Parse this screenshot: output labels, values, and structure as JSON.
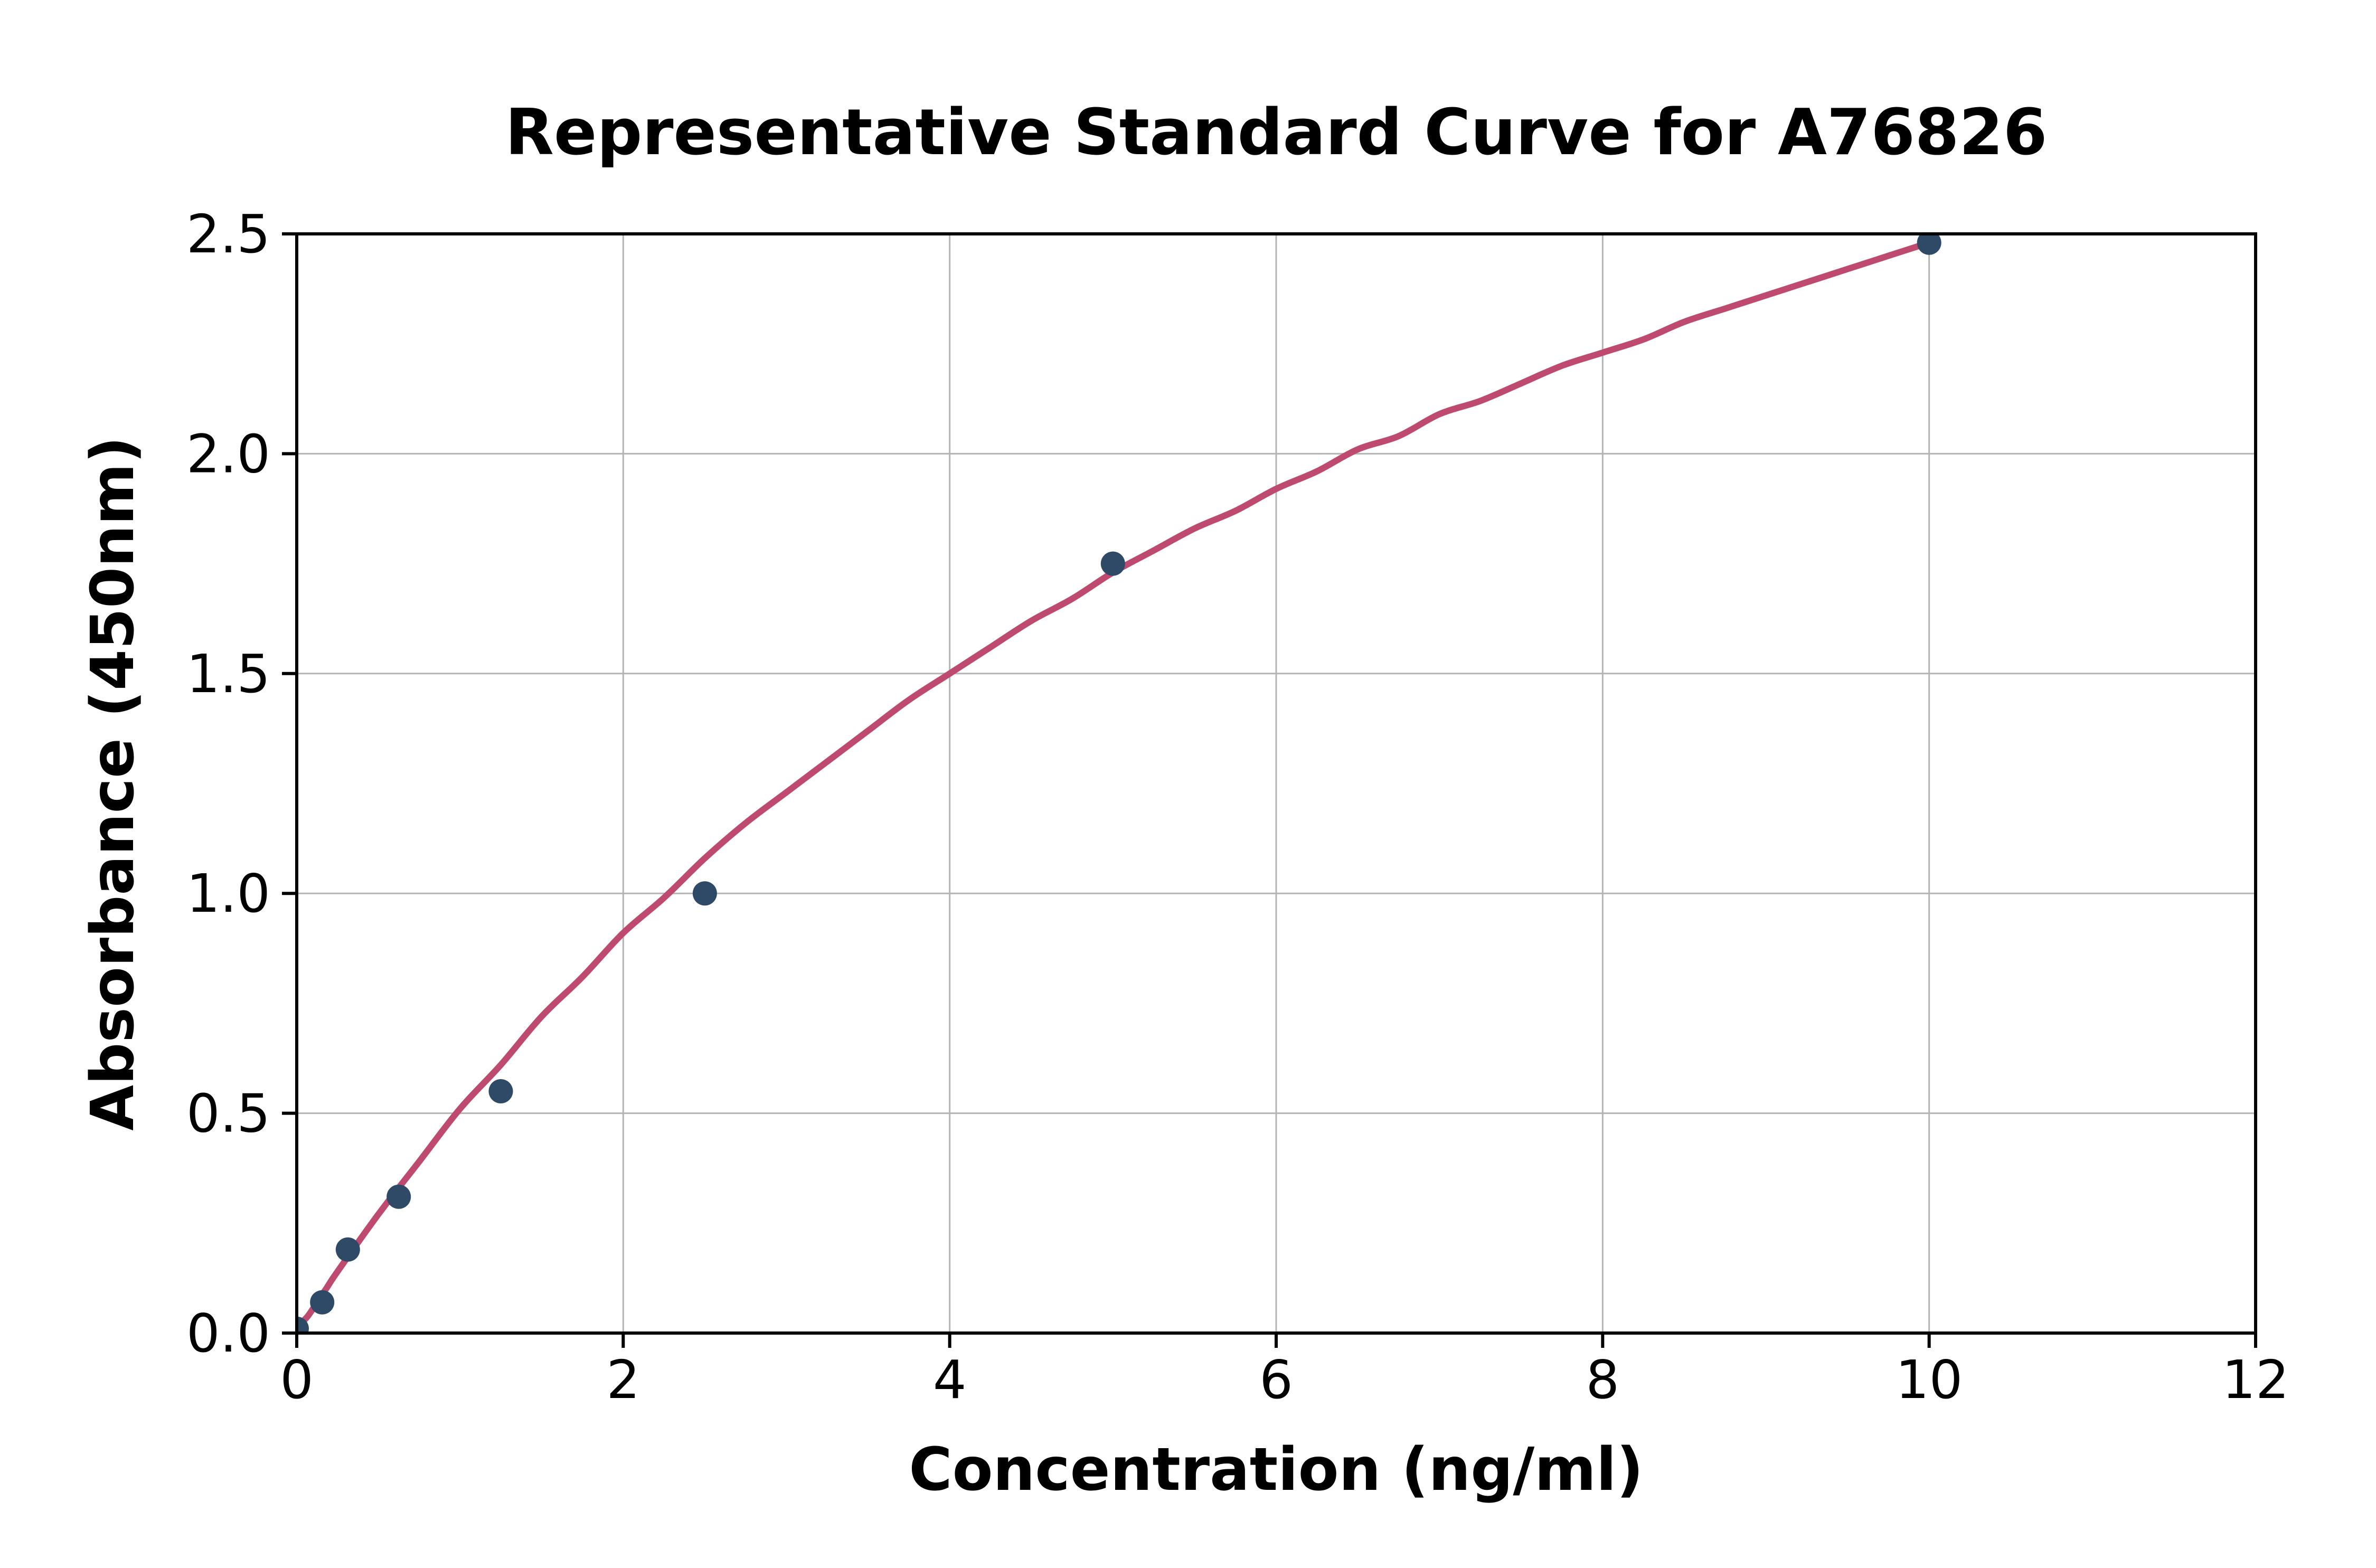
{
  "page": {
    "background": "#ffffff"
  },
  "chart_data": {
    "type": "scatter",
    "title": "Representative Standard Curve for A76826",
    "xlabel": "Concentration (ng/ml)",
    "ylabel": "Absorbance (450nm)",
    "xlim": [
      0,
      12
    ],
    "ylim": [
      0,
      2.5
    ],
    "x_ticks": [
      0,
      2,
      4,
      6,
      8,
      10,
      12
    ],
    "x_tick_labels": [
      "0",
      "2",
      "4",
      "6",
      "8",
      "10",
      "12"
    ],
    "y_ticks": [
      0.0,
      0.5,
      1.0,
      1.5,
      2.0,
      2.5
    ],
    "y_tick_labels": [
      "0.0",
      "0.5",
      "1.0",
      "1.5",
      "2.0",
      "2.5"
    ],
    "grid": true,
    "legend_position": "none",
    "colors": {
      "curve": "#bf4a70",
      "marker": "#2e4a66",
      "grid": "#b4b4b4",
      "axis": "#000000",
      "text": "#000000"
    },
    "series": [
      {
        "name": "standard-points",
        "type": "scatter",
        "color": "#2e4a66",
        "points": [
          [
            0,
            0.01
          ],
          [
            0.156,
            0.07
          ],
          [
            0.313,
            0.19
          ],
          [
            0.625,
            0.31
          ],
          [
            1.25,
            0.55
          ],
          [
            2.5,
            1.0
          ],
          [
            5,
            1.75
          ],
          [
            10,
            2.48
          ]
        ]
      },
      {
        "name": "fitted-curve",
        "type": "line",
        "color": "#bf4a70",
        "points": [
          [
            0,
            0.015
          ],
          [
            0.0625,
            0.036
          ],
          [
            0.125,
            0.07
          ],
          [
            0.1875,
            0.105
          ],
          [
            0.25,
            0.14
          ],
          [
            0.5,
            0.27
          ],
          [
            0.75,
            0.39
          ],
          [
            1.0,
            0.51
          ],
          [
            1.25,
            0.61
          ],
          [
            1.5,
            0.72
          ],
          [
            1.75,
            0.81
          ],
          [
            2.0,
            0.91
          ],
          [
            2.25,
            0.99
          ],
          [
            2.5,
            1.08
          ],
          [
            2.75,
            1.16
          ],
          [
            3.0,
            1.23
          ],
          [
            3.25,
            1.3
          ],
          [
            3.5,
            1.37
          ],
          [
            3.75,
            1.44
          ],
          [
            4.0,
            1.5
          ],
          [
            4.25,
            1.56
          ],
          [
            4.5,
            1.62
          ],
          [
            4.75,
            1.67
          ],
          [
            5.0,
            1.73
          ],
          [
            5.25,
            1.78
          ],
          [
            5.5,
            1.83
          ],
          [
            5.75,
            1.87
          ],
          [
            6.0,
            1.92
          ],
          [
            6.25,
            1.96
          ],
          [
            6.5,
            2.01
          ],
          [
            6.75,
            2.04
          ],
          [
            7.0,
            2.09
          ],
          [
            7.25,
            2.12
          ],
          [
            7.5,
            2.16
          ],
          [
            7.75,
            2.2
          ],
          [
            8.0,
            2.23
          ],
          [
            8.25,
            2.26
          ],
          [
            8.5,
            2.3
          ],
          [
            8.75,
            2.33
          ],
          [
            9.0,
            2.36
          ],
          [
            9.25,
            2.39
          ],
          [
            9.5,
            2.42
          ],
          [
            9.75,
            2.45
          ],
          [
            10.0,
            2.48
          ]
        ]
      }
    ]
  }
}
